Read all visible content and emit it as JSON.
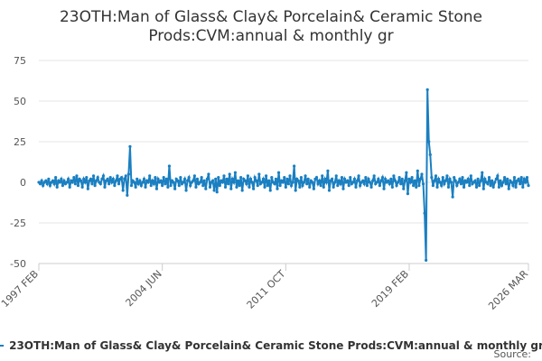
{
  "chart_data": {
    "type": "line",
    "title": "23OTH:Man of Glass& Clay& Porcelain& Ceramic Stone Prods:CVM:annual & monthly gr",
    "source": "Source:",
    "categories": [
      "1997 FEB",
      null,
      null,
      null,
      null,
      null,
      null,
      null,
      null,
      null,
      null,
      null,
      null,
      null,
      null,
      null,
      null,
      null,
      null,
      null,
      null,
      null,
      null,
      null,
      null,
      null,
      null,
      null,
      null,
      null,
      null,
      null,
      null,
      null,
      null,
      null,
      null,
      null,
      null,
      null,
      null,
      null,
      null,
      null,
      null,
      null,
      null,
      null,
      null,
      null,
      null,
      null,
      null,
      null,
      null,
      null,
      null,
      null,
      null,
      null,
      null,
      null,
      null,
      null,
      null,
      null,
      null,
      null,
      null,
      null,
      null,
      null,
      null,
      null,
      null,
      null,
      null,
      null,
      null,
      null,
      null,
      null,
      null,
      null,
      null,
      null,
      null,
      null,
      "2004 JUN",
      null,
      null,
      null,
      null,
      null,
      null,
      null,
      null,
      null,
      null,
      null,
      null,
      null,
      null,
      null,
      null,
      null,
      null,
      null,
      null,
      null,
      null,
      null,
      null,
      null,
      null,
      null,
      null,
      null,
      null,
      null,
      null,
      null,
      null,
      null,
      null,
      null,
      null,
      null,
      null,
      null,
      null,
      null,
      null,
      null,
      null,
      null,
      null,
      null,
      null,
      null,
      null,
      null,
      null,
      null,
      null,
      null,
      null,
      null,
      null,
      null,
      null,
      null,
      null,
      null,
      null,
      null,
      null,
      null,
      null,
      null,
      null,
      null,
      null,
      null,
      null,
      null,
      null,
      null,
      null,
      null,
      null,
      null,
      null,
      null,
      null,
      null,
      "2011 OCT",
      null,
      null,
      null,
      null,
      null,
      null,
      null,
      null,
      null,
      null,
      null,
      null,
      null,
      null,
      null,
      null,
      null,
      null,
      null,
      null,
      null,
      null,
      null,
      null,
      null,
      null,
      null,
      null,
      null,
      null,
      null,
      null,
      null,
      null,
      null,
      null,
      null,
      null,
      null,
      null,
      null,
      null,
      null,
      null,
      null,
      null,
      null,
      null,
      null,
      null,
      null,
      null,
      null,
      null,
      null,
      null,
      null,
      null,
      null,
      null,
      null,
      null,
      null,
      null,
      null,
      null,
      null,
      null,
      null,
      null,
      null,
      null,
      null,
      null,
      null,
      null,
      null,
      null,
      null,
      null,
      null,
      null,
      null,
      null,
      null,
      null,
      null,
      "2019 FEB",
      null,
      null,
      null,
      null,
      null,
      null,
      null,
      null,
      null,
      null,
      null,
      null,
      null,
      null,
      null,
      null,
      null,
      null,
      null,
      null,
      null,
      null,
      null,
      null,
      null,
      null,
      null,
      null,
      null,
      null,
      null,
      null,
      null,
      null,
      null,
      null,
      null,
      null,
      null,
      null,
      null,
      null,
      null,
      null,
      null,
      null,
      null,
      null,
      null,
      null,
      null,
      null,
      null,
      null,
      null,
      null,
      null,
      null,
      null,
      null,
      null,
      null,
      null,
      null,
      null,
      null,
      null,
      null,
      null,
      null,
      null,
      null,
      null,
      null,
      null,
      null,
      null,
      null,
      null,
      null,
      null,
      null,
      null,
      null,
      "2026 MAR"
    ],
    "series": [
      {
        "name": "23OTH:Man of Glass& Clay& Porcelain& Ceramic Stone Prods:CVM:annual & monthly gr",
        "color": "#1a7fc1",
        "values": [
          0,
          -1,
          1,
          -2,
          0,
          1,
          -1,
          2,
          -2,
          0,
          1,
          -1,
          3,
          -3,
          1,
          0,
          2,
          -2,
          1,
          -1,
          0,
          2,
          -3,
          1,
          0,
          3,
          -1,
          4,
          -2,
          2,
          1,
          -3,
          2,
          0,
          3,
          -4,
          1,
          2,
          -1,
          4,
          -2,
          1,
          3,
          0,
          -1,
          2,
          4,
          -3,
          1,
          2,
          -1,
          3,
          0,
          2,
          -2,
          1,
          4,
          -1,
          2,
          3,
          -5,
          2,
          4,
          -8,
          5,
          22,
          -2,
          1,
          0,
          -3,
          2,
          -1,
          1,
          -2,
          0,
          2,
          -3,
          1,
          0,
          4,
          -2,
          1,
          -1,
          3,
          -4,
          2,
          0,
          1,
          -2,
          3,
          -1,
          2,
          -3,
          10,
          -2,
          1,
          0,
          -4,
          2,
          1,
          -2,
          3,
          -1,
          0,
          2,
          -5,
          1,
          3,
          -2,
          0,
          1,
          4,
          -3,
          2,
          -1,
          0,
          3,
          -2,
          1,
          -4,
          2,
          5,
          -3,
          0,
          1,
          -5,
          2,
          -6,
          3,
          -2,
          1,
          0,
          4,
          -3,
          2,
          -1,
          5,
          -4,
          2,
          0,
          6,
          -3,
          1,
          -2,
          3,
          -5,
          2,
          1,
          -1,
          4,
          -3,
          2,
          0,
          -4,
          3,
          1,
          -2,
          5,
          -1,
          0,
          2,
          -3,
          4,
          -2,
          1,
          -5,
          3,
          0,
          -1,
          2,
          -4,
          6,
          -2,
          1,
          0,
          3,
          -3,
          2,
          -1,
          4,
          -2,
          0,
          10,
          -5,
          2,
          1,
          -3,
          3,
          -2,
          0,
          4,
          -1,
          2,
          -3,
          1,
          0,
          -4,
          2,
          3,
          -1,
          1,
          -2,
          4,
          -3,
          2,
          0,
          7,
          -5,
          1,
          2,
          -3,
          0,
          4,
          -2,
          1,
          -1,
          3,
          -4,
          2,
          0,
          1,
          -2,
          3,
          -1,
          0,
          2,
          -3,
          1,
          4,
          -2,
          0,
          1,
          -1,
          3,
          -2,
          2,
          0,
          -3,
          1,
          4,
          -1,
          0,
          2,
          -2,
          1,
          3,
          -4,
          2,
          0,
          1,
          -1,
          2,
          -3,
          4,
          1,
          -2,
          0,
          3,
          -1,
          2,
          -4,
          1,
          6,
          -7,
          2,
          0,
          3,
          -2,
          1,
          -3,
          7,
          -2,
          2,
          5,
          -1,
          -19,
          -48,
          57,
          25,
          17,
          3,
          -2,
          1,
          4,
          -3,
          2,
          0,
          -2,
          3,
          -1,
          1,
          4,
          -3,
          2,
          0,
          -9,
          3,
          1,
          -2,
          0,
          2,
          -1,
          3,
          -3,
          1,
          0,
          2,
          -2,
          4,
          -1,
          0,
          1,
          -3,
          2,
          -2,
          1,
          6,
          -4,
          2,
          0,
          -1,
          3,
          -2,
          1,
          -3,
          0,
          2,
          4,
          -3,
          1,
          -2,
          0,
          3,
          -1,
          2,
          -4,
          1,
          0,
          -2,
          3,
          -3,
          1,
          2,
          -1,
          3,
          -3,
          2,
          0,
          3,
          -2
        ]
      }
    ],
    "ylim": [
      -50,
      75
    ],
    "yticks": [
      -50,
      -25,
      0,
      25,
      50,
      75
    ],
    "grid": true
  }
}
